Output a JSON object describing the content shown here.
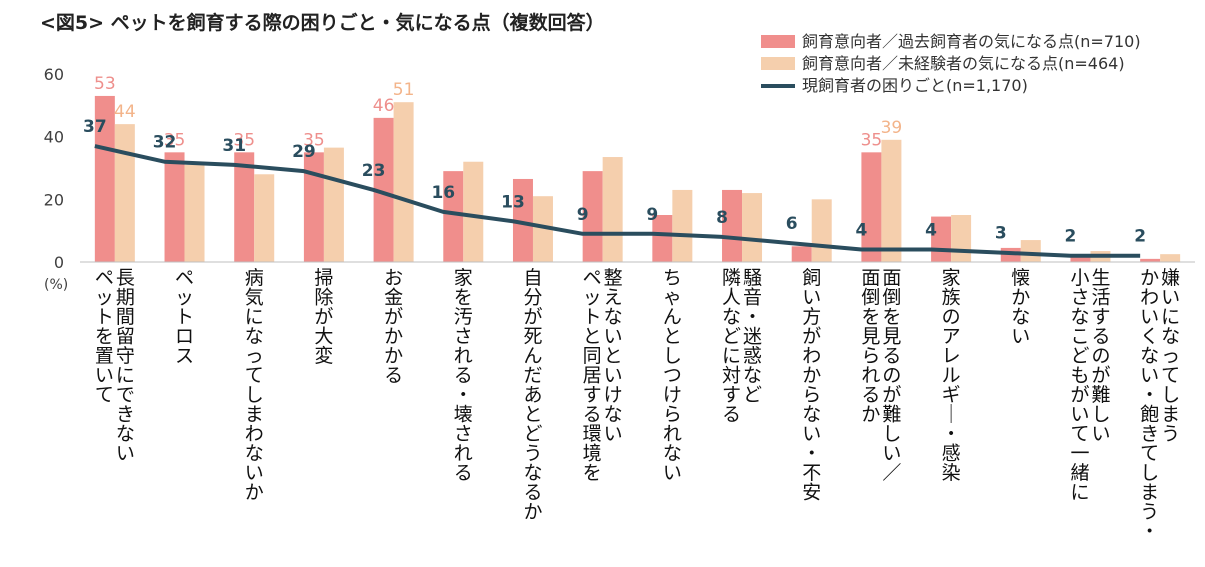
{
  "chart_data": {
    "type": "bar",
    "title": "<図5> ペットを飼育する際の困りごと・気になる点（複数回答）",
    "ylabel": "(%)",
    "ylim": [
      0,
      60
    ],
    "yticks": [
      0,
      20,
      40,
      60
    ],
    "legend_position": "top-right",
    "categories": [
      [
        "ペットを置いて",
        "長期間留守にできない"
      ],
      [
        "ペットロス"
      ],
      [
        "病気になってしまわないか"
      ],
      [
        "掃除が大変"
      ],
      [
        "お金がかかる"
      ],
      [
        "家を汚される・壊される"
      ],
      [
        "自分が死んだあとどうなるか"
      ],
      [
        "ペットと同居する環境を",
        "整えないといけない"
      ],
      [
        "ちゃんとしつけられない"
      ],
      [
        "隣人などに対する",
        "騒音・迷惑など"
      ],
      [
        "飼い方がわからない・不安"
      ],
      [
        "面倒を見られるか",
        "面倒を見るのが難しい／"
      ],
      [
        "家族のアレルギー・感染"
      ],
      [
        "懐かない"
      ],
      [
        "小さなこどもがいて一緒に",
        "生活するのが難しい"
      ],
      [
        "かわいくない・飽きてしまう・",
        "嫌いになってしまう"
      ]
    ],
    "series": [
      {
        "name": "飼育意向者／過去飼育者の気になる点(n=710)",
        "type": "bar",
        "color": "#f08e8c",
        "values": [
          53,
          35,
          35,
          35,
          46,
          29,
          26.5,
          29,
          15,
          23,
          5,
          35,
          14.5,
          4.5,
          1.5,
          1
        ],
        "labels": [
          "53",
          "35",
          "35",
          "35",
          "46",
          "",
          "",
          "",
          "",
          "",
          "",
          "35",
          "",
          "",
          "",
          ""
        ]
      },
      {
        "name": "飼育意向者／未経験者の気になる点(n=464)",
        "type": "bar",
        "color": "#f5cfad",
        "values": [
          44,
          31,
          28,
          36.5,
          51,
          32,
          21,
          33.5,
          23,
          22,
          20,
          39,
          15,
          7,
          3.5,
          2.5
        ],
        "labels": [
          "44",
          "",
          "",
          "",
          "51",
          "",
          "",
          "",
          "",
          "",
          "",
          "39",
          "",
          "",
          "",
          ""
        ]
      },
      {
        "name": "現飼育者の困りごと(n=1,170)",
        "type": "line",
        "color": "#2a4d5e",
        "values": [
          37,
          32,
          31,
          29,
          23,
          16,
          13,
          9,
          9,
          8,
          6,
          4,
          4,
          3,
          2,
          2
        ],
        "labels": [
          "37",
          "32",
          "31",
          "29",
          "23",
          "16",
          "13",
          "9",
          "9",
          "8",
          "6",
          "4",
          "4",
          "3",
          "2",
          "2"
        ]
      }
    ]
  }
}
